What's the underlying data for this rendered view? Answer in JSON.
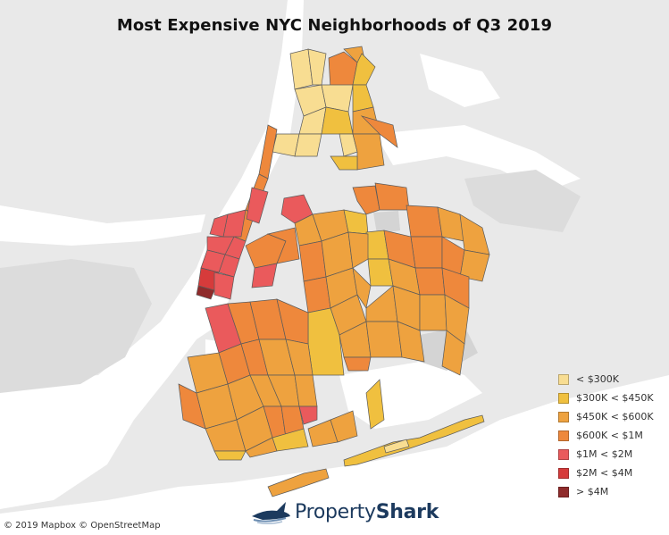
{
  "title": "Most Expensive NYC Neighborhoods of Q3 2019",
  "colors": {
    "water": "#ffffff",
    "land": "#e9e9e9",
    "unmapped": "#d7d7d7",
    "border": "#5a5a5a"
  },
  "legend": {
    "items": [
      {
        "label": "< $300K",
        "color": "#f8dd92"
      },
      {
        "label": "$300K < $450K",
        "color": "#f0c03f"
      },
      {
        "label": "$450K < $600K",
        "color": "#eea23f"
      },
      {
        "label": "$600K < $1M",
        "color": "#ee883c"
      },
      {
        "label": "$1M < $2M",
        "color": "#ea5a5c"
      },
      {
        "label": "$2M < $4M",
        "color": "#d63b3b"
      },
      {
        "label": "> $4M",
        "color": "#8f2b2b"
      }
    ]
  },
  "attribution": "© 2019 Mapbox © OpenStreetMap",
  "logo": {
    "part1": "Property",
    "part2": "Shark",
    "icon": "shark-icon"
  }
}
